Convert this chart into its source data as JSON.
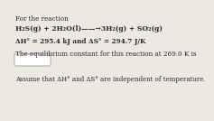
{
  "line1": "For the reaction",
  "line2": "H₂S(g) + 2H₂O(l)——→3H₂(g) + SO₂(g)",
  "line3": "ΔH° = 295.4 kJ and ΔS° = 294.7 J/K",
  "line4": "The equilibrium constant for this reaction at 269.0 K is",
  "line5": "Assume that ΔH° and ΔS° are independent of temperature.",
  "bg_color": "#ece8e2",
  "text_color": "#2a2a2a",
  "box_color": "#ffffff",
  "box_edge_color": "#999999"
}
